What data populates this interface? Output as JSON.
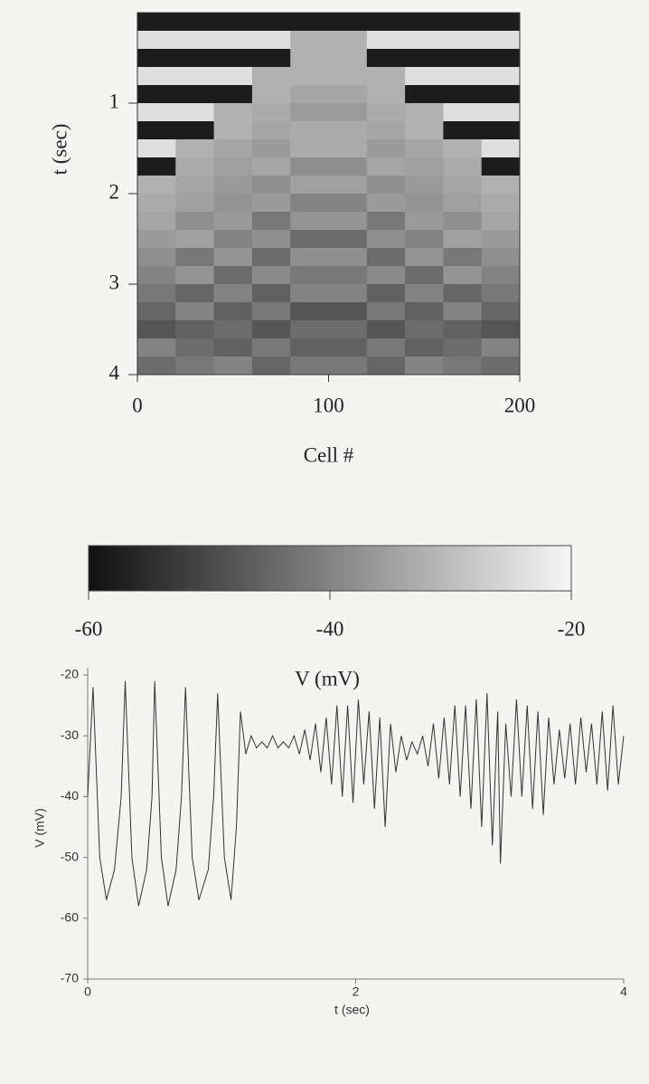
{
  "chart_data": [
    {
      "type": "heatmap",
      "xlabel": "Cell #",
      "ylabel": "t (sec)",
      "xlim": [
        0,
        200
      ],
      "xticks": [
        0,
        100,
        200
      ],
      "ylim": [
        0,
        4
      ],
      "yticks": [
        1,
        2,
        3,
        4
      ],
      "y_inverted": true,
      "x": [
        10,
        30,
        50,
        70,
        90,
        110,
        130,
        150,
        170,
        190
      ],
      "y": [
        0.1,
        0.3,
        0.5,
        0.7,
        0.9,
        1.1,
        1.3,
        1.5,
        1.7,
        1.9,
        2.1,
        2.3,
        2.5,
        2.7,
        2.9,
        3.1,
        3.3,
        3.5,
        3.7,
        3.9
      ],
      "z": [
        [
          -58,
          -58,
          -58,
          -58,
          -58,
          -58,
          -58,
          -58,
          -58,
          -58
        ],
        [
          -24,
          -24,
          -24,
          -24,
          -32,
          -32,
          -24,
          -24,
          -24,
          -24
        ],
        [
          -58,
          -58,
          -58,
          -58,
          -32,
          -32,
          -58,
          -58,
          -58,
          -58
        ],
        [
          -24,
          -24,
          -24,
          -32,
          -32,
          -32,
          -32,
          -24,
          -24,
          -24
        ],
        [
          -58,
          -58,
          -58,
          -32,
          -34,
          -34,
          -32,
          -58,
          -58,
          -58
        ],
        [
          -24,
          -24,
          -32,
          -33,
          -36,
          -36,
          -33,
          -32,
          -24,
          -24
        ],
        [
          -58,
          -58,
          -32,
          -34,
          -33,
          -33,
          -34,
          -32,
          -58,
          -58
        ],
        [
          -24,
          -32,
          -34,
          -36,
          -33,
          -33,
          -36,
          -34,
          -32,
          -24
        ],
        [
          -58,
          -33,
          -35,
          -34,
          -38,
          -38,
          -34,
          -35,
          -33,
          -58
        ],
        [
          -32,
          -34,
          -36,
          -38,
          -35,
          -35,
          -38,
          -36,
          -34,
          -32
        ],
        [
          -33,
          -35,
          -37,
          -36,
          -40,
          -40,
          -36,
          -37,
          -35,
          -33
        ],
        [
          -34,
          -38,
          -36,
          -42,
          -37,
          -37,
          -42,
          -36,
          -38,
          -34
        ],
        [
          -36,
          -35,
          -40,
          -38,
          -44,
          -44,
          -38,
          -40,
          -35,
          -36
        ],
        [
          -38,
          -42,
          -37,
          -44,
          -38,
          -38,
          -44,
          -37,
          -42,
          -38
        ],
        [
          -40,
          -37,
          -44,
          -39,
          -42,
          -42,
          -39,
          -44,
          -37,
          -40
        ],
        [
          -42,
          -45,
          -40,
          -46,
          -40,
          -40,
          -46,
          -40,
          -45,
          -42
        ],
        [
          -45,
          -40,
          -46,
          -42,
          -48,
          -48,
          -42,
          -46,
          -40,
          -45
        ],
        [
          -48,
          -46,
          -44,
          -48,
          -44,
          -44,
          -48,
          -44,
          -46,
          -48
        ],
        [
          -40,
          -44,
          -46,
          -42,
          -46,
          -46,
          -42,
          -46,
          -44,
          -40
        ],
        [
          -44,
          -42,
          -40,
          -45,
          -42,
          -42,
          -45,
          -40,
          -42,
          -44
        ]
      ]
    },
    {
      "type": "colorbar",
      "xlabel": "V (mV)",
      "xlim": [
        -60,
        -20
      ],
      "xticks": [
        -60,
        -40,
        -20
      ],
      "colors": [
        "#101010",
        "#f6f6f6"
      ]
    },
    {
      "type": "line",
      "xlabel": "t (sec)",
      "ylabel": "V (mV)",
      "color": "#333333",
      "xlim": [
        0,
        4
      ],
      "xticks": [
        0,
        2,
        4
      ],
      "ylim": [
        -70,
        -20
      ],
      "yticks": [
        -70,
        -60,
        -50,
        -40,
        -30,
        -20
      ],
      "x": [
        0,
        0.04,
        0.09,
        0.14,
        0.2,
        0.25,
        0.28,
        0.33,
        0.38,
        0.44,
        0.48,
        0.5,
        0.55,
        0.6,
        0.66,
        0.7,
        0.73,
        0.78,
        0.83,
        0.9,
        0.94,
        0.97,
        1.02,
        1.07,
        1.11,
        1.14,
        1.18,
        1.22,
        1.26,
        1.3,
        1.34,
        1.38,
        1.42,
        1.46,
        1.5,
        1.54,
        1.58,
        1.62,
        1.66,
        1.7,
        1.74,
        1.78,
        1.82,
        1.86,
        1.9,
        1.94,
        1.98,
        2.02,
        2.06,
        2.1,
        2.14,
        2.18,
        2.22,
        2.26,
        2.3,
        2.34,
        2.38,
        2.42,
        2.46,
        2.5,
        2.54,
        2.58,
        2.62,
        2.66,
        2.7,
        2.74,
        2.78,
        2.82,
        2.86,
        2.9,
        2.94,
        2.98,
        3.02,
        3.06,
        3.08,
        3.12,
        3.16,
        3.2,
        3.24,
        3.28,
        3.32,
        3.36,
        3.4,
        3.44,
        3.48,
        3.52,
        3.56,
        3.6,
        3.64,
        3.68,
        3.72,
        3.76,
        3.8,
        3.84,
        3.88,
        3.92,
        3.96,
        4.0
      ],
      "values": [
        -40,
        -22,
        -50,
        -57,
        -52,
        -40,
        -21,
        -50,
        -58,
        -52,
        -40,
        -21,
        -50,
        -58,
        -52,
        -40,
        -22,
        -50,
        -57,
        -52,
        -40,
        -23,
        -50,
        -57,
        -45,
        -26,
        -33,
        -30,
        -32,
        -31,
        -32,
        -30,
        -32,
        -31,
        -32,
        -30,
        -33,
        -29,
        -34,
        -28,
        -36,
        -27,
        -38,
        -25,
        -40,
        -25,
        -41,
        -24,
        -38,
        -26,
        -42,
        -27,
        -45,
        -28,
        -36,
        -30,
        -34,
        -31,
        -33,
        -30,
        -35,
        -28,
        -37,
        -27,
        -38,
        -25,
        -40,
        -25,
        -42,
        -24,
        -45,
        -23,
        -48,
        -26,
        -51,
        -28,
        -40,
        -24,
        -40,
        -25,
        -42,
        -26,
        -43,
        -27,
        -38,
        -29,
        -37,
        -28,
        -38,
        -27,
        -36,
        -28,
        -38,
        -26,
        -39,
        -25,
        -38,
        -30
      ]
    }
  ]
}
